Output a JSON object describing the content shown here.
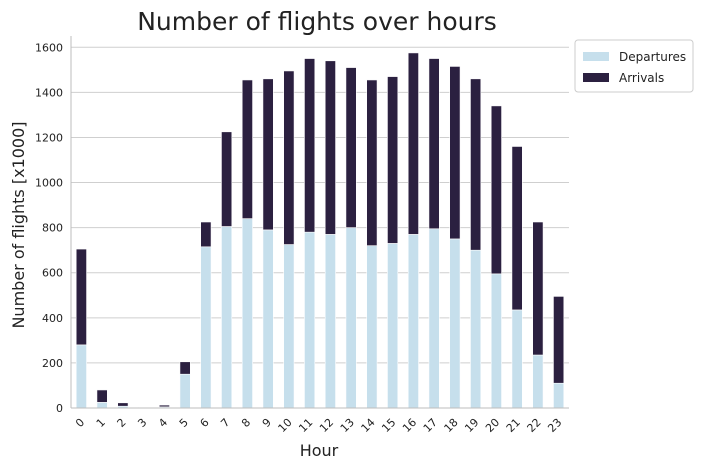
{
  "chart_data": {
    "type": "bar",
    "stacked": true,
    "title": "Number of flights over hours",
    "xlabel": "Hour",
    "ylabel": "Number of flights [x1000]",
    "categories": [
      "0",
      "1",
      "2",
      "3",
      "4",
      "5",
      "6",
      "7",
      "8",
      "9",
      "10",
      "11",
      "12",
      "13",
      "14",
      "15",
      "16",
      "17",
      "18",
      "19",
      "20",
      "21",
      "22",
      "23"
    ],
    "series": [
      {
        "name": "Departures",
        "color": "#c6dfec",
        "values": [
          280,
          25,
          8,
          2,
          5,
          150,
          715,
          805,
          840,
          790,
          725,
          780,
          770,
          800,
          720,
          730,
          770,
          795,
          750,
          700,
          595,
          435,
          235,
          110
        ]
      },
      {
        "name": "Arrivals",
        "color": "#2b2040",
        "values": [
          425,
          55,
          15,
          2,
          8,
          55,
          110,
          420,
          615,
          670,
          770,
          770,
          770,
          710,
          735,
          740,
          805,
          755,
          765,
          760,
          745,
          725,
          590,
          385
        ]
      }
    ],
    "ylim": [
      0,
      1650
    ],
    "yticks": [
      0,
      200,
      400,
      600,
      800,
      1000,
      1200,
      1400,
      1600
    ],
    "grid": "y",
    "legend": "outside-top-right"
  }
}
